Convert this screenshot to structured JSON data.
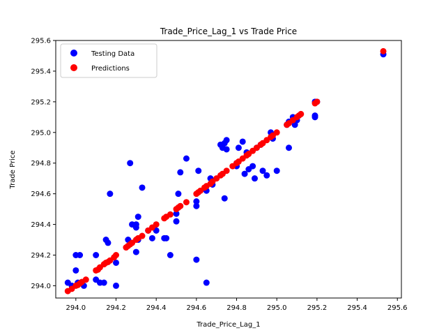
{
  "chart_data": {
    "type": "scatter",
    "title": "Trade_Price_Lag_1 vs Trade Price",
    "xlabel": "Trade_Price_Lag_1",
    "ylabel": "Trade Price",
    "xlim": [
      293.9,
      295.62
    ],
    "ylim": [
      293.92,
      295.6
    ],
    "xticks": [
      "294.0",
      "294.2",
      "294.4",
      "294.6",
      "294.8",
      "295.0",
      "295.2",
      "295.4",
      "295.6"
    ],
    "yticks": [
      "294.0",
      "294.2",
      "294.4",
      "294.6",
      "294.8",
      "295.0",
      "295.2",
      "295.4",
      "295.6"
    ],
    "legend_position": "top-left",
    "grid": false,
    "series": [
      {
        "name": "Testing Data",
        "color": "#0000ff",
        "points": [
          [
            293.96,
            294.02
          ],
          [
            293.98,
            294.0
          ],
          [
            294.0,
            294.1
          ],
          [
            294.0,
            294.2
          ],
          [
            294.01,
            294.02
          ],
          [
            294.02,
            294.2
          ],
          [
            294.04,
            294.0
          ],
          [
            294.1,
            294.2
          ],
          [
            294.1,
            294.04
          ],
          [
            294.12,
            294.02
          ],
          [
            294.14,
            294.02
          ],
          [
            294.15,
            294.3
          ],
          [
            294.16,
            294.28
          ],
          [
            294.17,
            294.6
          ],
          [
            294.2,
            294.15
          ],
          [
            294.2,
            294.0
          ],
          [
            294.26,
            294.3
          ],
          [
            294.27,
            294.8
          ],
          [
            294.28,
            294.4
          ],
          [
            294.3,
            294.4
          ],
          [
            294.3,
            294.38
          ],
          [
            294.3,
            294.22
          ],
          [
            294.31,
            294.45
          ],
          [
            294.31,
            294.3
          ],
          [
            294.33,
            294.64
          ],
          [
            294.36,
            294.36
          ],
          [
            294.38,
            294.31
          ],
          [
            294.4,
            294.36
          ],
          [
            294.44,
            294.31
          ],
          [
            294.45,
            294.31
          ],
          [
            294.47,
            294.2
          ],
          [
            294.5,
            294.42
          ],
          [
            294.5,
            294.47
          ],
          [
            294.51,
            294.6
          ],
          [
            294.52,
            294.74
          ],
          [
            294.55,
            294.83
          ],
          [
            294.6,
            294.17
          ],
          [
            294.6,
            294.52
          ],
          [
            294.6,
            294.55
          ],
          [
            294.61,
            294.75
          ],
          [
            294.65,
            294.02
          ],
          [
            294.65,
            294.62
          ],
          [
            294.67,
            294.7
          ],
          [
            294.68,
            294.66
          ],
          [
            294.72,
            294.92
          ],
          [
            294.73,
            294.9
          ],
          [
            294.74,
            294.57
          ],
          [
            294.74,
            294.93
          ],
          [
            294.75,
            294.95
          ],
          [
            294.75,
            294.89
          ],
          [
            294.8,
            294.78
          ],
          [
            294.8,
            294.8
          ],
          [
            294.81,
            294.9
          ],
          [
            294.83,
            294.94
          ],
          [
            294.84,
            294.73
          ],
          [
            294.85,
            294.87
          ],
          [
            294.86,
            294.76
          ],
          [
            294.88,
            294.78
          ],
          [
            294.89,
            294.7
          ],
          [
            294.9,
            294.9
          ],
          [
            294.92,
            294.92
          ],
          [
            294.93,
            294.75
          ],
          [
            294.95,
            294.72
          ],
          [
            294.97,
            295.0
          ],
          [
            294.98,
            294.96
          ],
          [
            295.0,
            294.75
          ],
          [
            295.05,
            295.05
          ],
          [
            295.06,
            295.07
          ],
          [
            295.06,
            294.9
          ],
          [
            295.08,
            295.1
          ],
          [
            295.09,
            295.05
          ],
          [
            295.1,
            295.08
          ],
          [
            295.19,
            295.2
          ],
          [
            295.19,
            295.11
          ],
          [
            295.19,
            295.1
          ],
          [
            295.2,
            295.2
          ],
          [
            295.53,
            295.51
          ]
        ]
      },
      {
        "name": "Predictions",
        "color": "#ff0000",
        "points": [
          [
            293.96,
            293.965
          ],
          [
            293.98,
            293.98
          ],
          [
            294.0,
            294.0
          ],
          [
            294.01,
            294.005
          ],
          [
            294.02,
            294.015
          ],
          [
            294.03,
            294.025
          ],
          [
            294.05,
            294.04
          ],
          [
            294.1,
            294.1
          ],
          [
            294.11,
            294.105
          ],
          [
            294.12,
            294.12
          ],
          [
            294.14,
            294.14
          ],
          [
            294.15,
            294.15
          ],
          [
            294.16,
            294.155
          ],
          [
            294.17,
            294.165
          ],
          [
            294.19,
            294.185
          ],
          [
            294.2,
            294.2
          ],
          [
            294.25,
            294.25
          ],
          [
            294.26,
            294.26
          ],
          [
            294.27,
            294.27
          ],
          [
            294.28,
            294.28
          ],
          [
            294.3,
            294.3
          ],
          [
            294.31,
            294.31
          ],
          [
            294.33,
            294.325
          ],
          [
            294.36,
            294.36
          ],
          [
            294.38,
            294.38
          ],
          [
            294.4,
            294.4
          ],
          [
            294.44,
            294.44
          ],
          [
            294.45,
            294.45
          ],
          [
            294.47,
            294.465
          ],
          [
            294.5,
            294.5
          ],
          [
            294.51,
            294.51
          ],
          [
            294.52,
            294.52
          ],
          [
            294.55,
            294.545
          ],
          [
            294.6,
            294.6
          ],
          [
            294.61,
            294.61
          ],
          [
            294.62,
            294.62
          ],
          [
            294.64,
            294.64
          ],
          [
            294.65,
            294.65
          ],
          [
            294.67,
            294.665
          ],
          [
            294.68,
            294.68
          ],
          [
            294.7,
            294.7
          ],
          [
            294.72,
            294.72
          ],
          [
            294.73,
            294.73
          ],
          [
            294.75,
            294.75
          ],
          [
            294.78,
            294.78
          ],
          [
            294.8,
            294.8
          ],
          [
            294.81,
            294.81
          ],
          [
            294.83,
            294.83
          ],
          [
            294.85,
            294.85
          ],
          [
            294.86,
            294.86
          ],
          [
            294.88,
            294.88
          ],
          [
            294.9,
            294.9
          ],
          [
            294.92,
            294.92
          ],
          [
            294.93,
            294.93
          ],
          [
            294.95,
            294.95
          ],
          [
            294.97,
            294.97
          ],
          [
            294.98,
            294.98
          ],
          [
            295.0,
            295.0
          ],
          [
            295.05,
            295.05
          ],
          [
            295.06,
            295.06
          ],
          [
            295.08,
            295.08
          ],
          [
            295.1,
            295.1
          ],
          [
            295.11,
            295.11
          ],
          [
            295.12,
            295.12
          ],
          [
            295.19,
            295.19
          ],
          [
            295.2,
            295.2
          ],
          [
            295.53,
            295.53
          ]
        ]
      }
    ]
  }
}
